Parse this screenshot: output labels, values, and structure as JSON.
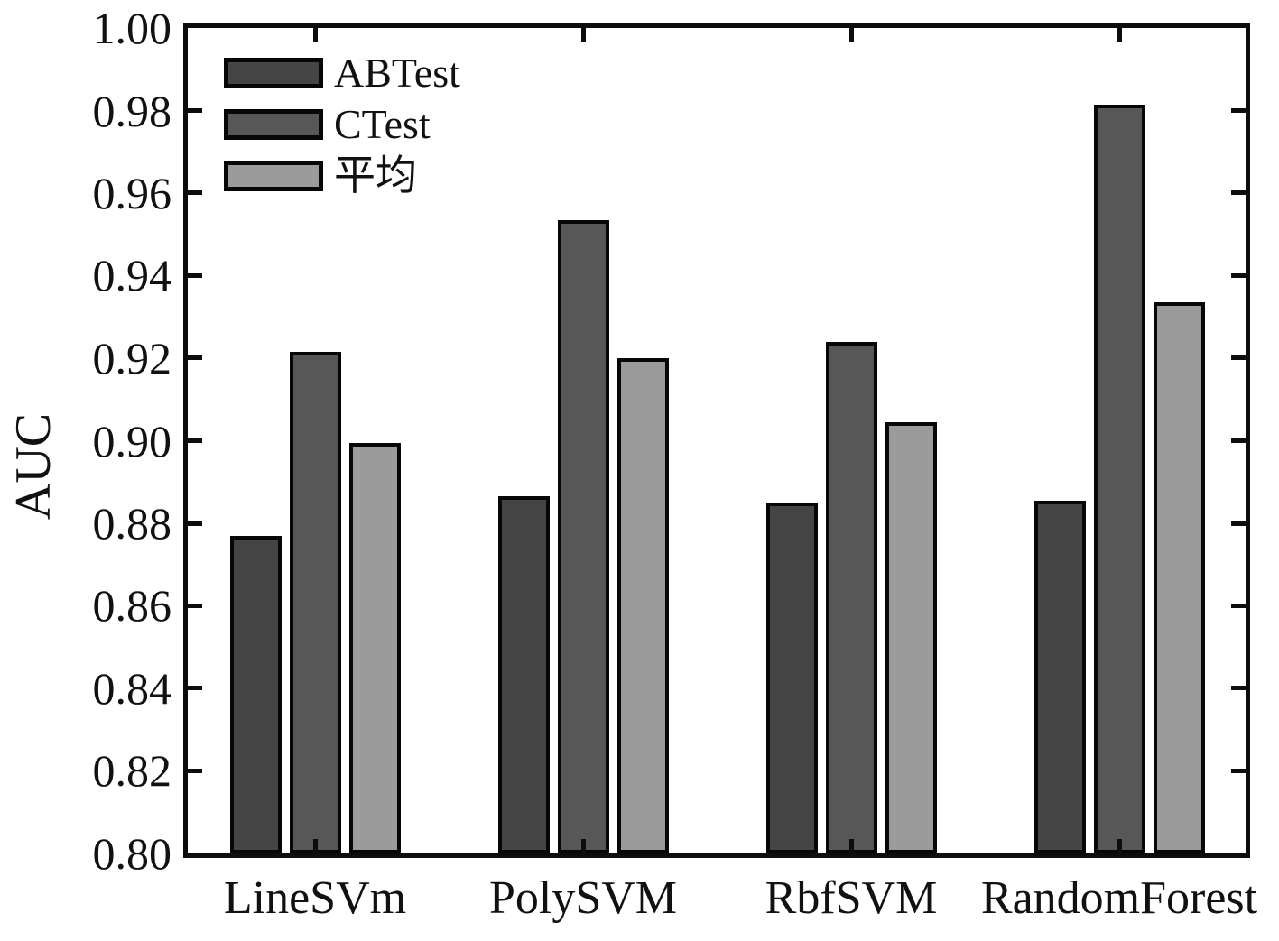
{
  "chart_data": {
    "type": "bar",
    "title": "",
    "ylabel": "AUC",
    "xlabel": "",
    "categories": [
      "LineSVm",
      "PolySVM",
      "RbfSVM",
      "RandomForest"
    ],
    "series": [
      {
        "name": "ABTest",
        "color": "#454545",
        "values": [
          0.877,
          0.8865,
          0.885,
          0.8855
        ]
      },
      {
        "name": "CTest",
        "color": "#575757",
        "values": [
          0.9215,
          0.9535,
          0.924,
          0.9815
        ]
      },
      {
        "name": "平均",
        "color": "#9b9b9b",
        "values": [
          0.8995,
          0.92,
          0.9045,
          0.9335
        ]
      }
    ],
    "ylim": [
      0.8,
      1.0
    ],
    "ytick_step": 0.02,
    "ytick_labels": [
      "0.80",
      "0.82",
      "0.84",
      "0.86",
      "0.88",
      "0.90",
      "0.92",
      "0.94",
      "0.96",
      "0.98",
      "1.00"
    ],
    "grid": false,
    "legend_position": "top-left",
    "legend_entries": [
      "ABTest",
      "CTest",
      "平均"
    ],
    "axis_color": "#0d0d0d",
    "background_color": "#ffffff",
    "bar_border_color": "#070707"
  }
}
